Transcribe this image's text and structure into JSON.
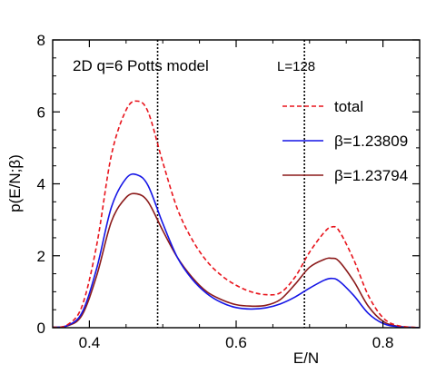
{
  "chart_data": {
    "type": "line",
    "xlabel": "E/N",
    "ylabel": "p(E/N;β)",
    "xlim": [
      0.35,
      0.85
    ],
    "ylim": [
      0,
      8
    ],
    "x_ticks": [
      0.4,
      0.6,
      0.8
    ],
    "x_tick_labels": [
      "0.4",
      "0.6",
      "0.8"
    ],
    "y_ticks": [
      0,
      2,
      4,
      6,
      8
    ],
    "y_tick_labels": [
      "0",
      "2",
      "4",
      "6",
      "8"
    ],
    "annotations": {
      "model": "2D q=6 Potts model",
      "size": "L=128"
    },
    "vlines": [
      0.493,
      0.693
    ],
    "legend_position": "top-right",
    "series": [
      {
        "name": "total",
        "color": "#e8141c",
        "style": "dashed",
        "x": [
          0.35,
          0.37,
          0.39,
          0.41,
          0.43,
          0.45,
          0.465,
          0.48,
          0.5,
          0.52,
          0.54,
          0.56,
          0.58,
          0.6,
          0.62,
          0.64,
          0.66,
          0.68,
          0.7,
          0.72,
          0.73,
          0.74,
          0.76,
          0.78,
          0.8,
          0.82,
          0.85
        ],
        "y": [
          0.01,
          0.08,
          0.6,
          2.3,
          4.8,
          6.05,
          6.3,
          6.0,
          4.6,
          3.3,
          2.45,
          1.85,
          1.45,
          1.18,
          1.0,
          0.92,
          0.97,
          1.4,
          2.1,
          2.65,
          2.8,
          2.7,
          1.9,
          0.9,
          0.28,
          0.06,
          0.0
        ]
      },
      {
        "name": "β=1.23809",
        "color": "#1414e6",
        "style": "solid",
        "x": [
          0.35,
          0.37,
          0.39,
          0.41,
          0.43,
          0.45,
          0.465,
          0.48,
          0.5,
          0.52,
          0.54,
          0.56,
          0.58,
          0.6,
          0.62,
          0.64,
          0.66,
          0.68,
          0.7,
          0.72,
          0.73,
          0.74,
          0.76,
          0.78,
          0.8,
          0.82,
          0.85
        ],
        "y": [
          0.01,
          0.06,
          0.42,
          1.65,
          3.35,
          4.15,
          4.25,
          3.95,
          2.9,
          1.95,
          1.35,
          0.95,
          0.7,
          0.56,
          0.52,
          0.55,
          0.66,
          0.85,
          1.1,
          1.32,
          1.37,
          1.3,
          0.9,
          0.4,
          0.12,
          0.03,
          0.0
        ]
      },
      {
        "name": "β=1.23794",
        "color": "#8b1a1a",
        "style": "solid",
        "x": [
          0.35,
          0.37,
          0.39,
          0.41,
          0.43,
          0.45,
          0.465,
          0.48,
          0.5,
          0.52,
          0.54,
          0.56,
          0.58,
          0.6,
          0.62,
          0.64,
          0.66,
          0.68,
          0.7,
          0.72,
          0.73,
          0.74,
          0.76,
          0.78,
          0.8,
          0.82,
          0.85
        ],
        "y": [
          0.01,
          0.05,
          0.35,
          1.45,
          2.95,
          3.62,
          3.72,
          3.5,
          2.7,
          1.95,
          1.4,
          1.0,
          0.78,
          0.64,
          0.6,
          0.62,
          0.78,
          1.2,
          1.68,
          1.9,
          1.93,
          1.85,
          1.3,
          0.6,
          0.18,
          0.04,
          0.0
        ]
      }
    ]
  }
}
